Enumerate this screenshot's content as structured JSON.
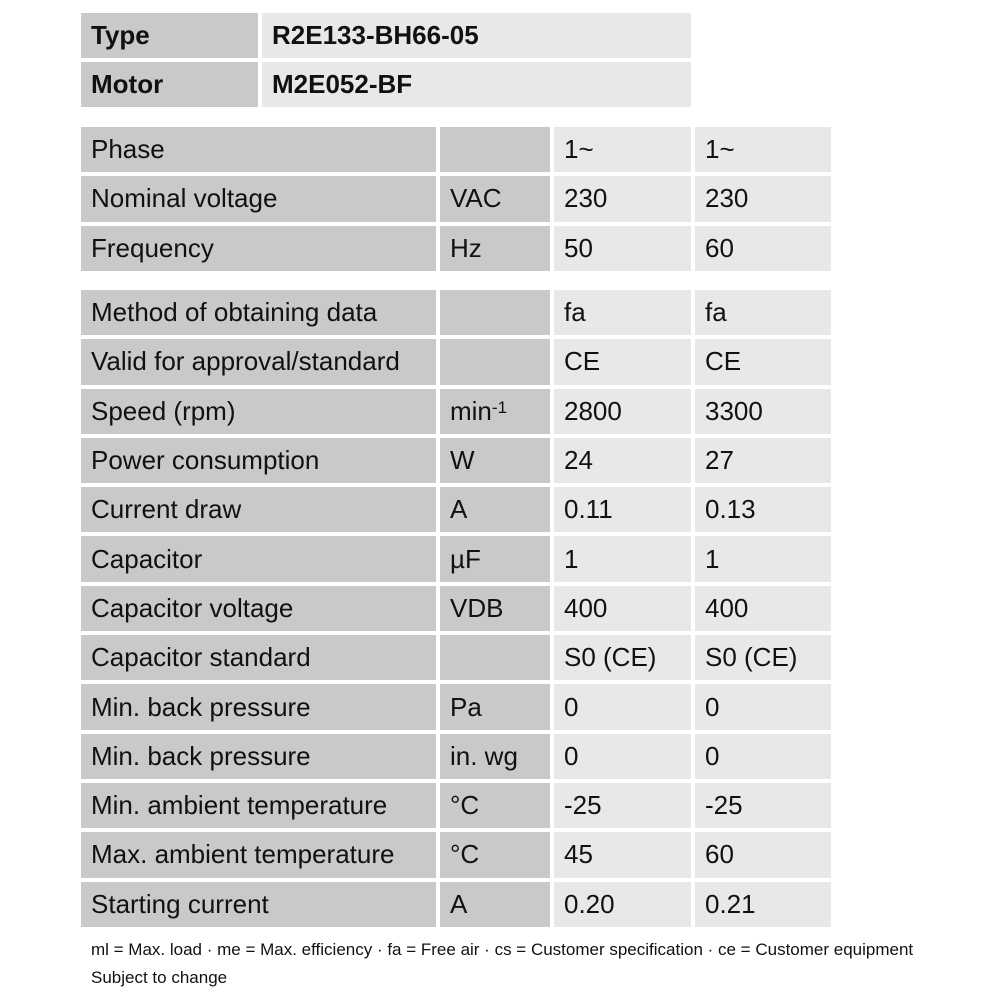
{
  "header": [
    {
      "label": "Type",
      "value": "R2E133-BH66-05"
    },
    {
      "label": "Motor",
      "value": "M2E052-BF"
    }
  ],
  "group1": [
    {
      "label": "Phase",
      "unit": "",
      "unit_sup": "",
      "v1": "1~",
      "v2": "1~"
    },
    {
      "label": "Nominal voltage",
      "unit": "VAC",
      "unit_sup": "",
      "v1": "230",
      "v2": "230"
    },
    {
      "label": "Frequency",
      "unit": "Hz",
      "unit_sup": "",
      "v1": "50",
      "v2": "60"
    }
  ],
  "group2": [
    {
      "label": "Method of obtaining data",
      "unit": "",
      "unit_sup": "",
      "v1": "fa",
      "v2": "fa"
    },
    {
      "label": "Valid for approval/standard",
      "unit": "",
      "unit_sup": "",
      "v1": "CE",
      "v2": "CE"
    },
    {
      "label": "Speed (rpm)",
      "unit": "min",
      "unit_sup": "-1",
      "v1": "2800",
      "v2": "3300"
    },
    {
      "label": "Power consumption",
      "unit": "W",
      "unit_sup": "",
      "v1": "24",
      "v2": "27"
    },
    {
      "label": "Current draw",
      "unit": "A",
      "unit_sup": "",
      "v1": "0.11",
      "v2": "0.13"
    },
    {
      "label": "Capacitor",
      "unit": "µF",
      "unit_sup": "",
      "v1": "1",
      "v2": "1"
    },
    {
      "label": "Capacitor voltage",
      "unit": "VDB",
      "unit_sup": "",
      "v1": "400",
      "v2": "400"
    },
    {
      "label": "Capacitor standard",
      "unit": "",
      "unit_sup": "",
      "v1": "S0 (CE)",
      "v2": "S0 (CE)"
    },
    {
      "label": "Min. back pressure",
      "unit": "Pa",
      "unit_sup": "",
      "v1": "0",
      "v2": "0"
    },
    {
      "label": "Min. back pressure",
      "unit": "in. wg",
      "unit_sup": "",
      "v1": "0",
      "v2": "0"
    },
    {
      "label": "Min. ambient temperature",
      "unit": "°C",
      "unit_sup": "",
      "v1": "-25",
      "v2": "-25"
    },
    {
      "label": "Max. ambient temperature",
      "unit": "°C",
      "unit_sup": "",
      "v1": "45",
      "v2": "60"
    },
    {
      "label": "Starting current",
      "unit": "A",
      "unit_sup": "",
      "v1": "0.20",
      "v2": "0.21"
    }
  ],
  "footer": {
    "legend": "ml = Max. load · me = Max. efficiency · fa = Free air · cs = Customer specification · ce = Customer equipment",
    "note": "Subject to change"
  }
}
